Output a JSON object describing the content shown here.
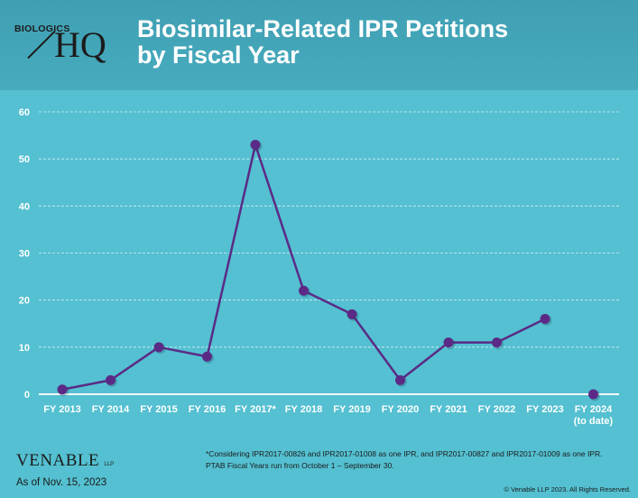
{
  "header": {
    "title_line1": "Biosimilar-Related IPR Petitions",
    "title_line2": "by Fiscal Year",
    "logo_top": "BIOLOGICS",
    "logo_main": "HQ"
  },
  "chart_data": {
    "type": "line",
    "categories": [
      "FY 2013",
      "FY 2014",
      "FY 2015",
      "FY 2016",
      "FY 2017*",
      "FY 2018",
      "FY 2019",
      "FY 2020",
      "FY 2021",
      "FY 2022",
      "FY 2023",
      "FY 2024"
    ],
    "category_sublabels": [
      "",
      "",
      "",
      "",
      "",
      "",
      "",
      "",
      "",
      "",
      "",
      "(to date)"
    ],
    "values": [
      1,
      3,
      10,
      8,
      53,
      22,
      17,
      3,
      11,
      11,
      16,
      0
    ],
    "connect_last_point": false,
    "ylim": [
      0,
      60
    ],
    "yticks": [
      0,
      10,
      20,
      30,
      40,
      50,
      60
    ],
    "grid": "horizontal dashed",
    "title": "",
    "xlabel": "",
    "ylabel": "",
    "colors": {
      "line": "#5b2a86",
      "marker": "#5b2a86",
      "grid": "#e9f7fa",
      "axis": "#ffffff",
      "text": "#ffffff"
    }
  },
  "footer": {
    "note_line1": "*Considering IPR2017-00826 and IPR2017-01008 as one IPR, and IPR2017-00827 and IPR2017-01009 as one IPR.",
    "note_line2": "PTAB Fiscal Years run from October 1 – September 30.",
    "brand": "VENABLE",
    "brand_suffix": "LLP",
    "as_of": "As of Nov. 15, 2023",
    "copyright": "© Venable LLP 2023. All Rights Reserved."
  }
}
